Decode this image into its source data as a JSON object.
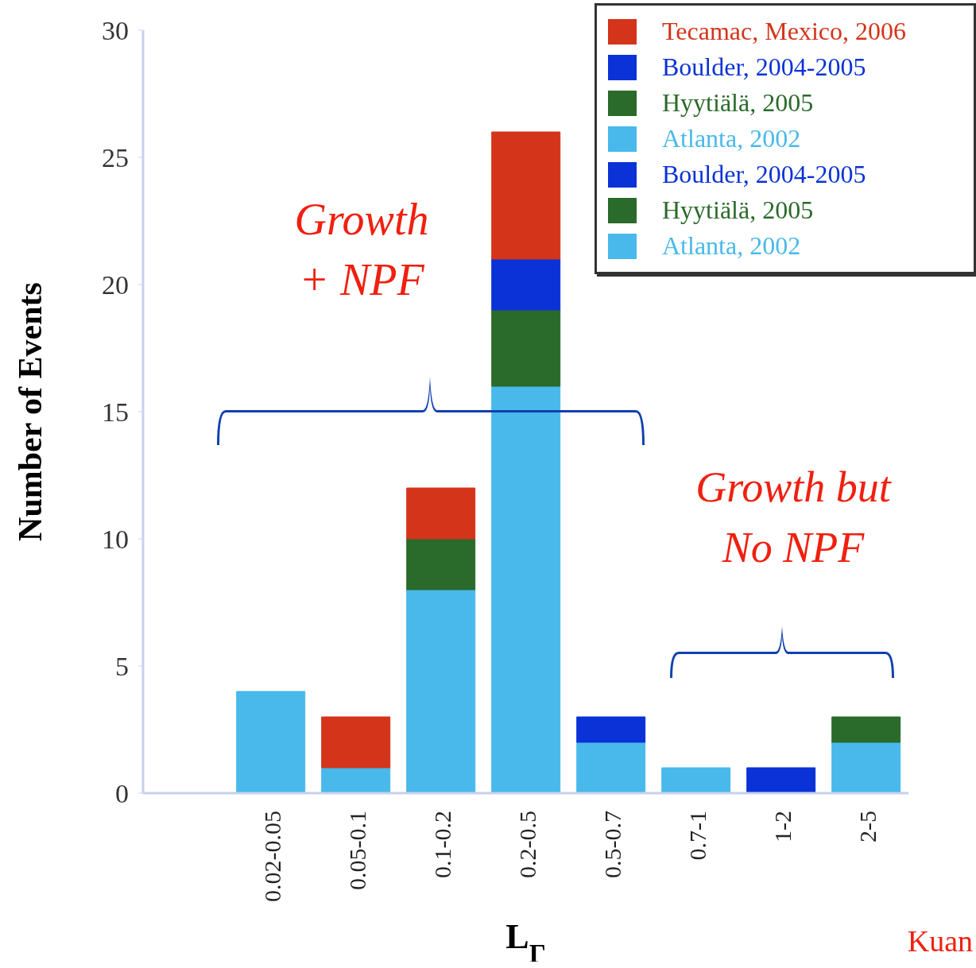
{
  "chart_data": {
    "type": "bar",
    "stacked": true,
    "xlabel": "L$_{Γ}$",
    "ylabel": "Number of Events",
    "categories": [
      null,
      "0.02-0.05",
      "0.05-0.1",
      "0.1-0.2",
      "0.2-0.5",
      "0.5-0.7",
      "0.7-1",
      "1-2",
      "2-5"
    ],
    "series": [
      {
        "name": "Atlanta, 2002",
        "color": "#48b9ea",
        "values": [
          null,
          null,
          null,
          null,
          null,
          null,
          1,
          null,
          2
        ]
      },
      {
        "name": "Hyytiälä, 2005",
        "color": "#2a6a2a",
        "values": [
          null,
          null,
          null,
          null,
          null,
          null,
          null,
          null,
          1
        ]
      },
      {
        "name": "Boulder, 2004-2005",
        "color": "#0a32d6",
        "values": [
          null,
          null,
          null,
          null,
          null,
          null,
          null,
          1,
          null
        ]
      },
      {
        "name": "Atlanta, 2002",
        "color": "#48b9ea",
        "values": [
          null,
          4,
          1,
          8,
          16,
          2,
          null,
          null,
          null
        ]
      },
      {
        "name": "Hyytiälä, 2005",
        "color": "#2a6a2a",
        "values": [
          null,
          null,
          null,
          2,
          3,
          null,
          null,
          null,
          null
        ]
      },
      {
        "name": "Boulder, 2004-2005",
        "color": "#0a32d6",
        "values": [
          null,
          null,
          null,
          null,
          2,
          1,
          null,
          null,
          null
        ]
      },
      {
        "name": "Tecamac, Mexico, 2006",
        "color": "#d4341a",
        "values": [
          null,
          null,
          2,
          2,
          5,
          null,
          null,
          null,
          null
        ]
      }
    ],
    "ylim": [
      0,
      30
    ],
    "yticks": [
      0,
      5,
      10,
      15,
      20,
      25,
      30
    ],
    "grid": false,
    "legend": "top right",
    "annotations": [
      "Growth + NPF",
      "Growth but No NPF",
      "Kuan"
    ]
  }
}
